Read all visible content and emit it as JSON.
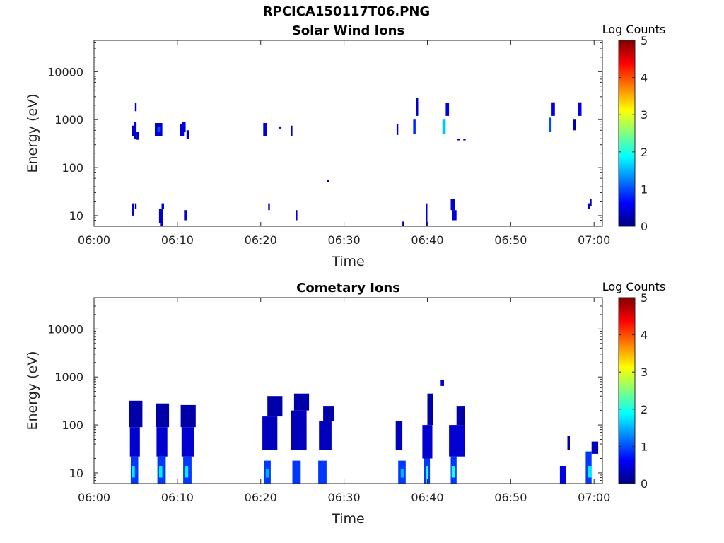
{
  "figure_title": "RPCICA150117T06.PNG",
  "colormap": [
    "#00007f",
    "#0000ff",
    "#007fff",
    "#00ffff",
    "#7fff7f",
    "#ffff00",
    "#ff7f00",
    "#ff0000",
    "#7f0000"
  ],
  "chart_data": [
    {
      "type": "heatmap",
      "title": "Solar Wind Ions",
      "xlabel": "Time",
      "ylabel": "Energy (eV)",
      "x_ticks": [
        "06:00",
        "06:10",
        "06:20",
        "06:30",
        "06:40",
        "06:50",
        "07:00"
      ],
      "xlim_minutes": [
        0,
        61
      ],
      "y_scale": "log",
      "y_ticks": [
        "10",
        "100",
        "1000",
        "10000"
      ],
      "ylim": [
        6,
        45000
      ],
      "colorbar": {
        "label": "Log Counts",
        "range": [
          0,
          5
        ],
        "ticks": [
          "0",
          "1",
          "2",
          "3",
          "4",
          "5"
        ]
      },
      "cells": [
        [
          4.5,
          4.8,
          450,
          750,
          0.3
        ],
        [
          4.8,
          5.1,
          400,
          900,
          0.5
        ],
        [
          4.9,
          5.1,
          1500,
          2200,
          0.4
        ],
        [
          5.1,
          5.4,
          380,
          550,
          0.3
        ],
        [
          7.3,
          8.2,
          450,
          850,
          0.4
        ],
        [
          7.6,
          8.0,
          550,
          700,
          1.0
        ],
        [
          10.3,
          10.8,
          450,
          800,
          0.4
        ],
        [
          10.6,
          11.0,
          550,
          900,
          0.5
        ],
        [
          11.1,
          11.4,
          400,
          600,
          0.3
        ],
        [
          20.3,
          20.7,
          450,
          850,
          0.4
        ],
        [
          22.2,
          22.4,
          650,
          720,
          0.3
        ],
        [
          23.6,
          23.8,
          450,
          750,
          0.3
        ],
        [
          28.0,
          28.2,
          50,
          55,
          0.3
        ],
        [
          36.3,
          36.5,
          480,
          800,
          0.3
        ],
        [
          38.3,
          38.6,
          500,
          1000,
          0.8
        ],
        [
          38.6,
          38.9,
          1200,
          2800,
          0.4
        ],
        [
          41.8,
          42.2,
          500,
          1000,
          1.6
        ],
        [
          42.2,
          42.6,
          1200,
          2200,
          0.5
        ],
        [
          43.6,
          43.9,
          370,
          400,
          0.3
        ],
        [
          44.3,
          44.6,
          370,
          400,
          0.3
        ],
        [
          54.6,
          54.9,
          550,
          1100,
          1.0
        ],
        [
          54.9,
          55.3,
          1200,
          2300,
          0.5
        ],
        [
          57.5,
          57.8,
          600,
          1000,
          0.3
        ],
        [
          58.1,
          58.5,
          1200,
          2300,
          0.5
        ],
        [
          4.5,
          4.8,
          10,
          18,
          0.4
        ],
        [
          4.9,
          5.1,
          14,
          18,
          0.3
        ],
        [
          7.8,
          8.3,
          7,
          14,
          0.4
        ],
        [
          8.1,
          8.4,
          14,
          18,
          0.4
        ],
        [
          8.0,
          8.3,
          6,
          8,
          0.4
        ],
        [
          10.8,
          11.2,
          8,
          13,
          0.4
        ],
        [
          20.9,
          21.1,
          13,
          18,
          0.3
        ],
        [
          24.2,
          24.4,
          8,
          13,
          0.4
        ],
        [
          37.0,
          37.2,
          6,
          7.5,
          0.3
        ],
        [
          39.8,
          40.0,
          6,
          18,
          0.4
        ],
        [
          42.8,
          43.3,
          13,
          22,
          0.4
        ],
        [
          43.0,
          43.5,
          8,
          13,
          0.4
        ],
        [
          59.3,
          59.5,
          14,
          18,
          0.3
        ],
        [
          59.5,
          59.7,
          16,
          22,
          0.3
        ]
      ]
    },
    {
      "type": "heatmap",
      "title": "Cometary Ions",
      "xlabel": "Time",
      "ylabel": "Energy (eV)",
      "x_ticks": [
        "06:00",
        "06:10",
        "06:20",
        "06:30",
        "06:40",
        "06:50",
        "07:00"
      ],
      "xlim_minutes": [
        0,
        61
      ],
      "y_scale": "log",
      "y_ticks": [
        "10",
        "100",
        "1000",
        "10000"
      ],
      "ylim": [
        6,
        45000
      ],
      "colorbar": {
        "label": "Log Counts",
        "range": [
          0,
          5
        ],
        "ticks": [
          "0",
          "1",
          "2",
          "3",
          "4",
          "5"
        ]
      },
      "cells": [
        [
          4.4,
          5.3,
          6,
          22,
          0.9
        ],
        [
          4.5,
          4.9,
          8,
          14,
          1.8
        ],
        [
          4.3,
          5.5,
          22,
          90,
          0.4
        ],
        [
          4.2,
          5.8,
          90,
          320,
          0.2
        ],
        [
          7.6,
          8.6,
          6,
          22,
          0.9
        ],
        [
          7.8,
          8.2,
          8,
          14,
          1.8
        ],
        [
          7.5,
          8.8,
          22,
          90,
          0.4
        ],
        [
          7.4,
          9.0,
          90,
          280,
          0.2
        ],
        [
          10.7,
          11.7,
          6,
          22,
          0.9
        ],
        [
          10.9,
          11.3,
          8,
          14,
          1.8
        ],
        [
          10.5,
          12.0,
          22,
          90,
          0.4
        ],
        [
          10.4,
          12.2,
          90,
          260,
          0.2
        ],
        [
          20.4,
          21.2,
          6,
          18,
          0.9
        ],
        [
          20.6,
          21.0,
          8,
          12,
          1.5
        ],
        [
          20.2,
          22.0,
          30,
          150,
          0.3
        ],
        [
          20.8,
          22.6,
          150,
          400,
          0.2
        ],
        [
          23.8,
          24.8,
          6,
          18,
          0.9
        ],
        [
          23.6,
          25.5,
          30,
          200,
          0.3
        ],
        [
          24.0,
          25.8,
          200,
          450,
          0.2
        ],
        [
          26.9,
          27.9,
          6,
          18,
          0.9
        ],
        [
          27.0,
          28.5,
          30,
          120,
          0.3
        ],
        [
          27.5,
          28.8,
          120,
          250,
          0.2
        ],
        [
          36.5,
          37.4,
          6,
          18,
          0.9
        ],
        [
          36.8,
          37.2,
          8,
          12,
          1.5
        ],
        [
          36.2,
          37.0,
          30,
          120,
          0.3
        ],
        [
          39.6,
          40.3,
          6,
          20,
          0.9
        ],
        [
          39.8,
          40.1,
          8,
          14,
          2.0
        ],
        [
          39.9,
          40.1,
          6,
          8,
          2.4
        ],
        [
          39.4,
          40.6,
          20,
          100,
          0.4
        ],
        [
          40.0,
          40.7,
          100,
          450,
          0.2
        ],
        [
          41.6,
          42.0,
          650,
          850,
          0.4
        ],
        [
          42.8,
          43.5,
          6,
          22,
          0.9
        ],
        [
          42.9,
          43.3,
          8,
          14,
          2.0
        ],
        [
          42.6,
          44.5,
          22,
          100,
          0.4
        ],
        [
          43.5,
          44.5,
          100,
          250,
          0.2
        ],
        [
          55.9,
          56.6,
          6,
          14,
          0.5
        ],
        [
          56.8,
          57.1,
          30,
          60,
          0.2
        ],
        [
          59.0,
          59.7,
          6,
          28,
          0.9
        ],
        [
          59.3,
          59.7,
          8,
          14,
          1.8
        ],
        [
          59.7,
          60.5,
          25,
          45,
          0.3
        ]
      ]
    }
  ]
}
